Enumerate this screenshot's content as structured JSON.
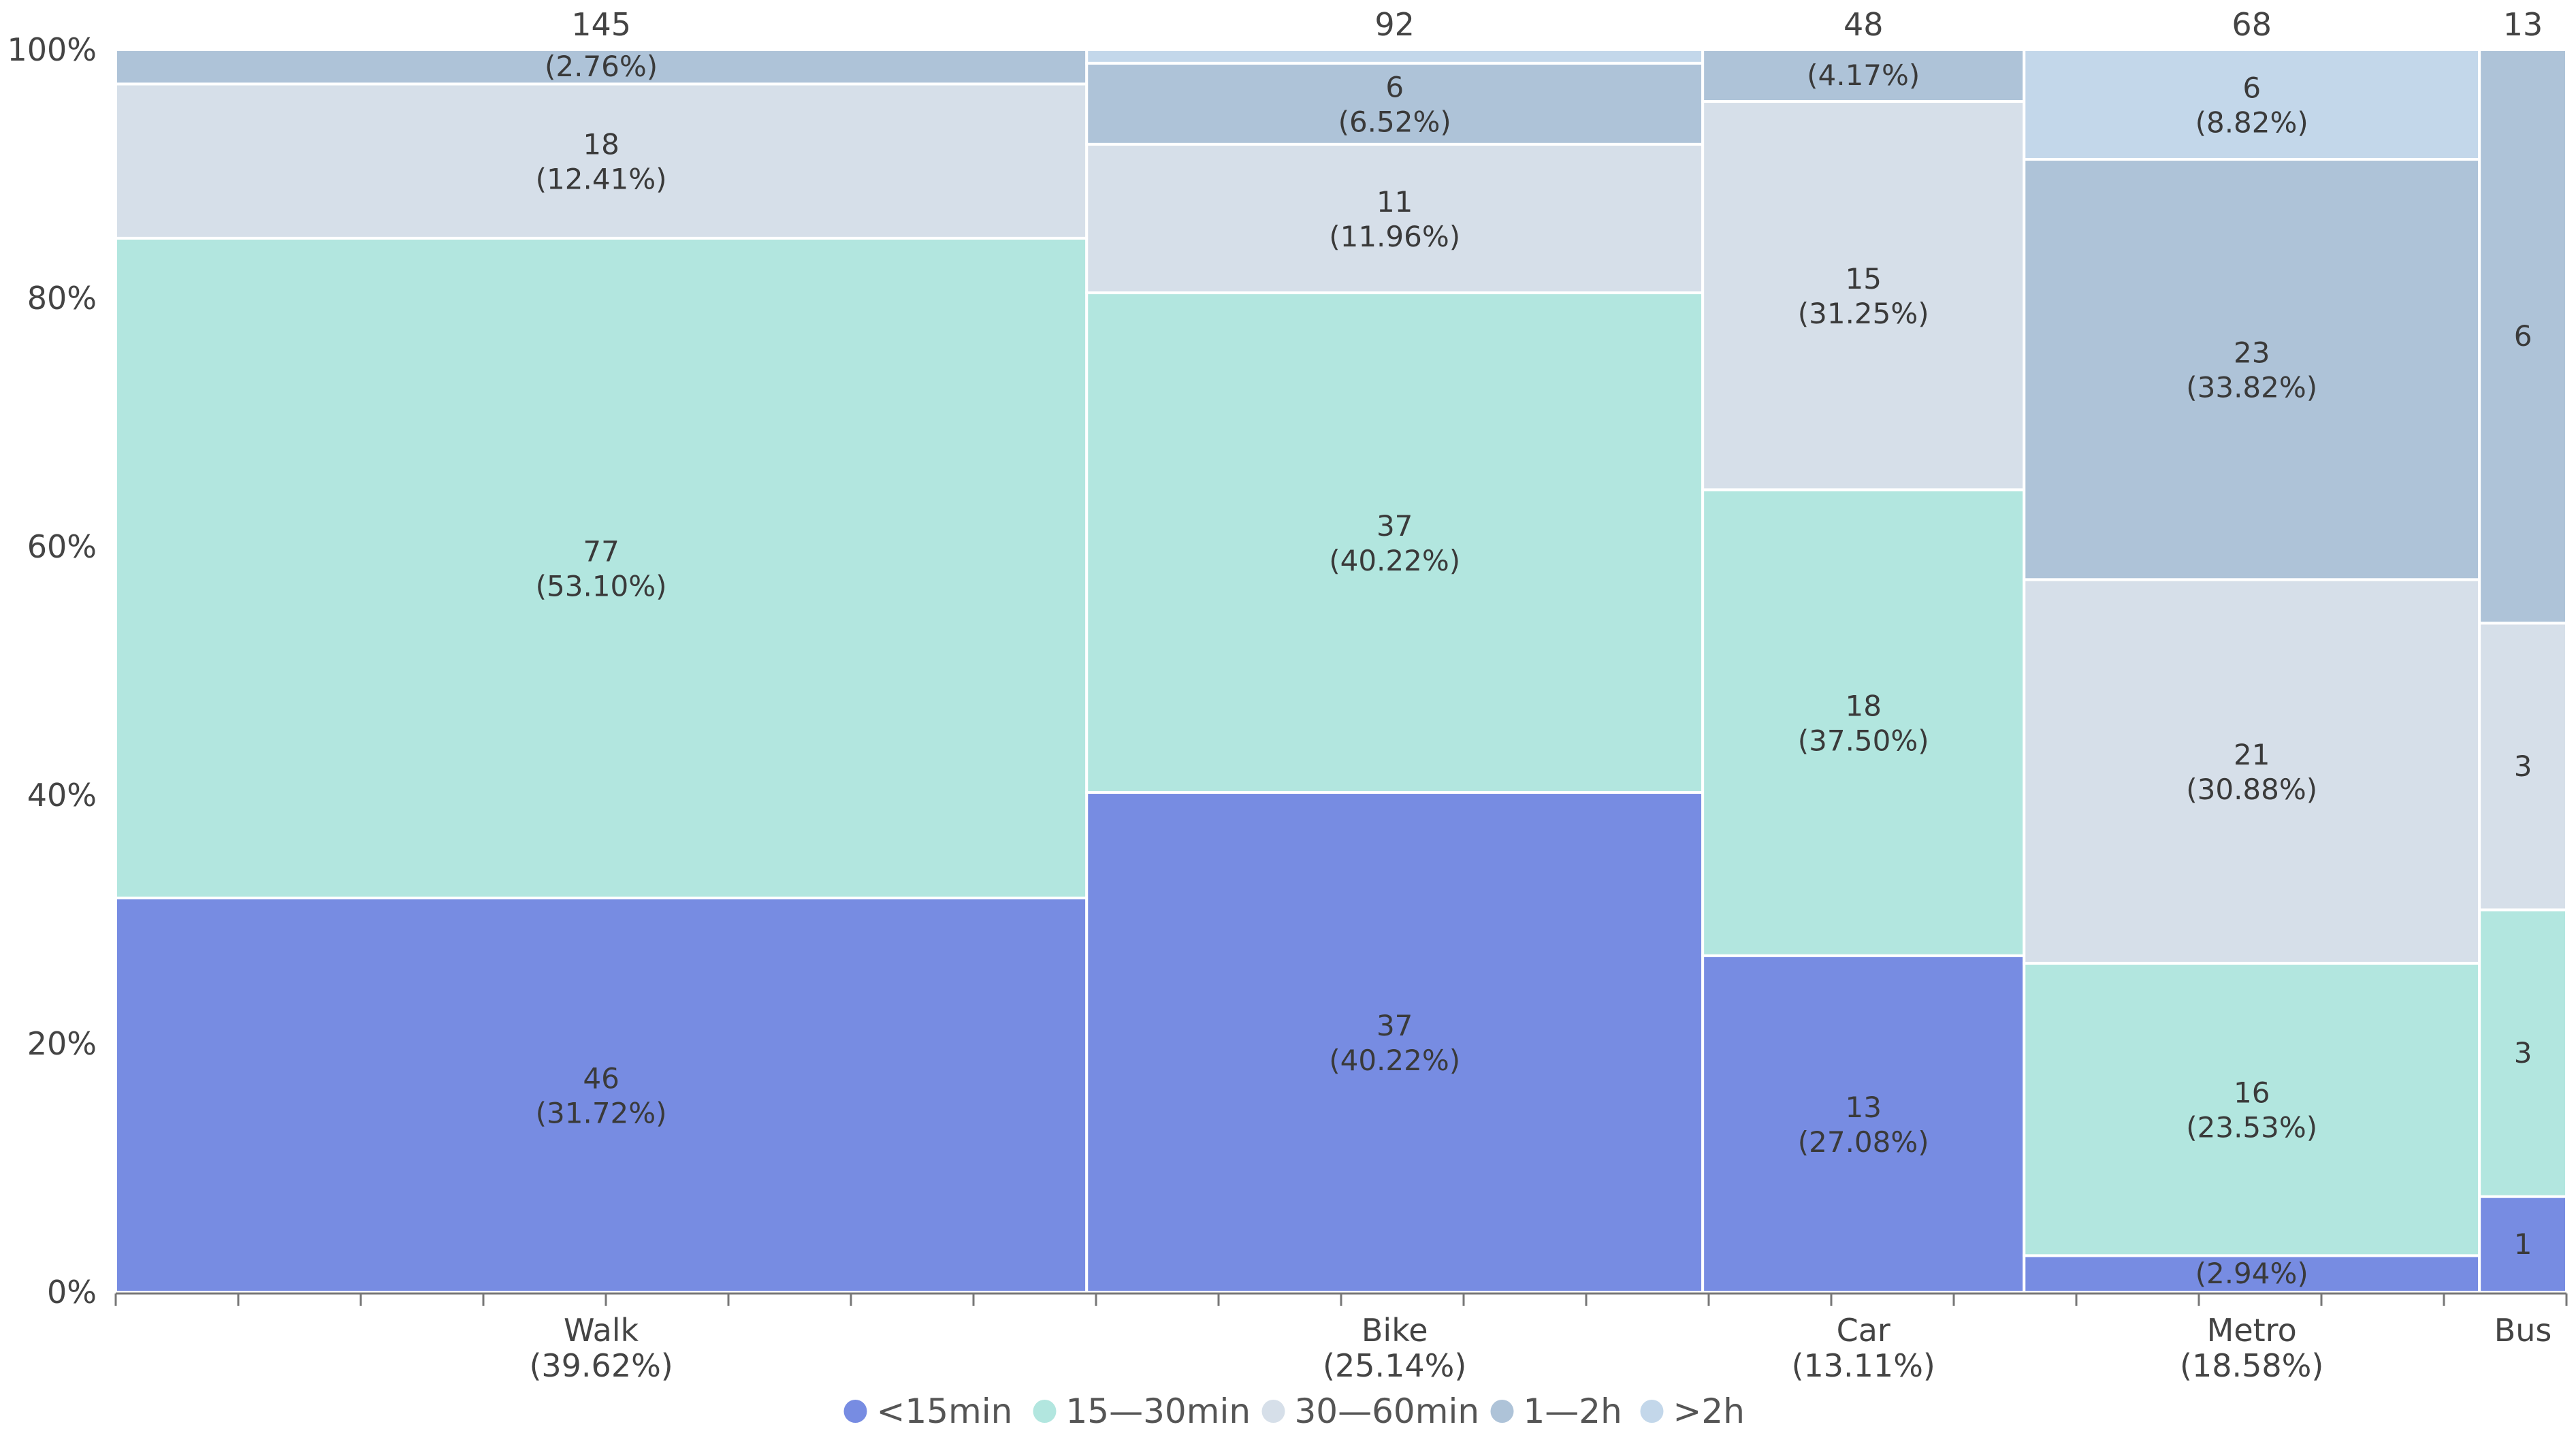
{
  "chart_data": {
    "type": "mosaic",
    "y_ticks": [
      "0%",
      "20%",
      "40%",
      "60%",
      "80%",
      "100%"
    ],
    "categories": [
      {
        "name": "Walk",
        "share_label": "(39.62%)",
        "total": 145
      },
      {
        "name": "Bike",
        "share_label": "(25.14%)",
        "total": 92
      },
      {
        "name": "Car",
        "share_label": "(13.11%)",
        "total": 48
      },
      {
        "name": "Metro",
        "share_label": "(18.58%)",
        "total": 68
      },
      {
        "name": "Bus",
        "share_label": "",
        "total": 13
      }
    ],
    "series": [
      {
        "name": "<15min",
        "color": "#778CE2",
        "values": [
          46,
          37,
          13,
          2,
          1
        ]
      },
      {
        "name": "15—30min",
        "color": "#B2E6DF",
        "values": [
          77,
          37,
          18,
          16,
          3
        ]
      },
      {
        "name": "30—60min",
        "color": "#D6DFE9",
        "values": [
          18,
          11,
          15,
          21,
          3
        ]
      },
      {
        "name": "1—2h",
        "color": "#AEC3D8",
        "values": [
          4,
          6,
          2,
          23,
          6
        ]
      },
      {
        "name": ">2h",
        "color": "#C3D7EA",
        "values": [
          0,
          1,
          0,
          6,
          0
        ]
      }
    ],
    "segment_labels": [
      [
        {
          "count": "46",
          "pct": "(31.72%)"
        },
        {
          "count": "77",
          "pct": "(53.10%)"
        },
        {
          "count": "18",
          "pct": "(12.41%)"
        },
        {
          "count": "",
          "pct": "(2.76%)"
        },
        null
      ],
      [
        {
          "count": "37",
          "pct": "(40.22%)"
        },
        {
          "count": "37",
          "pct": "(40.22%)"
        },
        {
          "count": "11",
          "pct": "(11.96%)"
        },
        {
          "count": "6",
          "pct": "(6.52%)"
        },
        null
      ],
      [
        {
          "count": "13",
          "pct": "(27.08%)"
        },
        {
          "count": "18",
          "pct": "(37.50%)"
        },
        {
          "count": "15",
          "pct": "(31.25%)"
        },
        {
          "count": "",
          "pct": "(4.17%)"
        },
        null
      ],
      [
        {
          "count": "",
          "pct": "(2.94%)"
        },
        {
          "count": "16",
          "pct": "(23.53%)"
        },
        {
          "count": "21",
          "pct": "(30.88%)"
        },
        {
          "count": "23",
          "pct": "(33.82%)"
        },
        {
          "count": "6",
          "pct": "(8.82%)"
        }
      ],
      [
        {
          "count": "1",
          "pct": ""
        },
        {
          "count": "3",
          "pct": ""
        },
        {
          "count": "3",
          "pct": ""
        },
        {
          "count": "6",
          "pct": ""
        },
        null
      ]
    ],
    "legend_position": "bottom-center"
  }
}
